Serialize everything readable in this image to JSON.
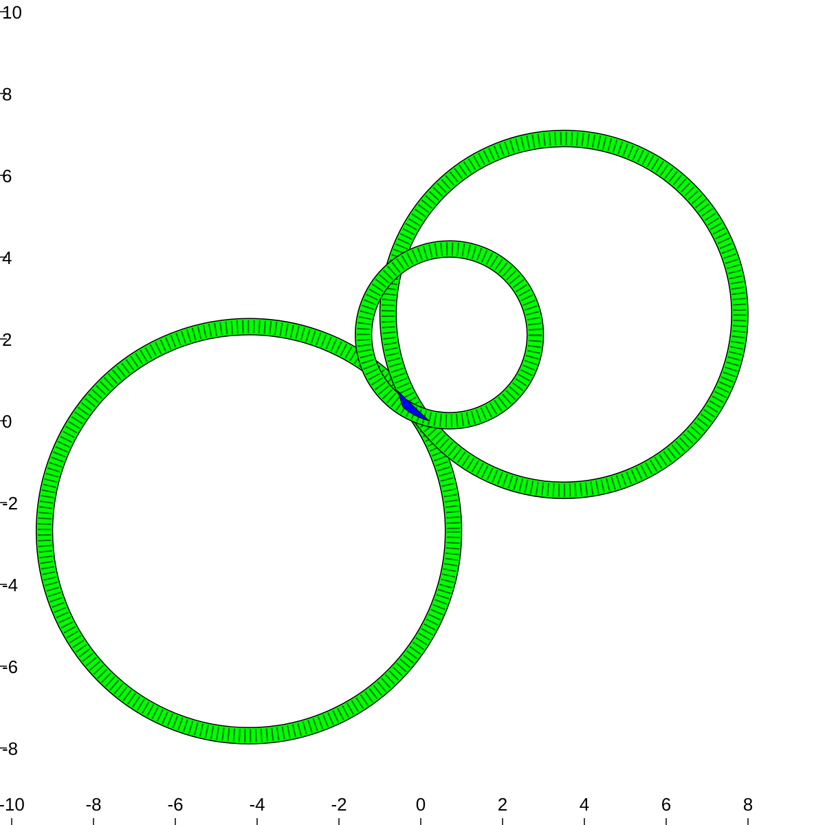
{
  "chart_data": {
    "type": "scatter",
    "title": "",
    "xlabel": "",
    "ylabel": "",
    "xlim": [
      -10,
      10
    ],
    "ylim": [
      -10,
      10
    ],
    "grid": false,
    "x_ticks": [
      "-10",
      "-8",
      "-6",
      "-4",
      "-2",
      "0",
      "2",
      "4",
      "6",
      "8"
    ],
    "y_ticks": [
      "10",
      "8",
      "6",
      "4",
      "2",
      "0",
      "-2",
      "-4",
      "-6",
      "-8"
    ],
    "x_tick_values": [
      -10,
      -8,
      -6,
      -4,
      -2,
      0,
      2,
      4,
      6,
      8
    ],
    "y_tick_values": [
      10,
      8,
      6,
      4,
      2,
      0,
      -2,
      -4,
      -6,
      -8
    ],
    "rings": [
      {
        "cx": -4.2,
        "cy": -2.7,
        "r_outer": 5.2,
        "r_inner": 4.8
      },
      {
        "cx": 3.5,
        "cy": 2.6,
        "r_outer": 4.5,
        "r_inner": 4.1
      },
      {
        "cx": 0.7,
        "cy": 2.1,
        "r_outer": 2.3,
        "r_inner": 1.9
      }
    ],
    "overlap_region": {
      "x": -0.2,
      "y": 0.3
    }
  },
  "colors": {
    "ring_fill": "#00ff00",
    "ring_edge": "#000000",
    "overlap_fill": "#0000ff",
    "background": "#ffffff",
    "axis": "#000000"
  }
}
